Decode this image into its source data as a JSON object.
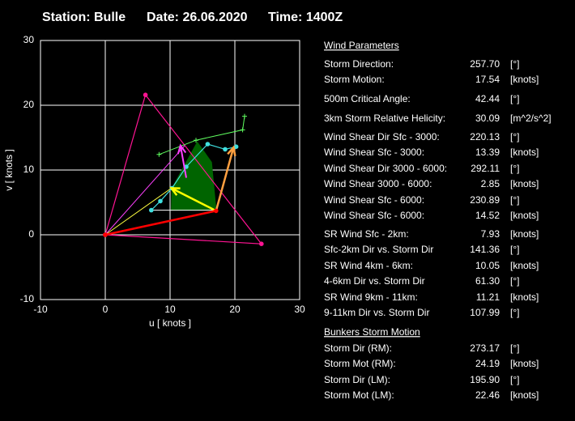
{
  "header": {
    "station": "Station: Bulle",
    "date": "Date: 26.06.2020",
    "time": "Time: 1400Z"
  },
  "chart_data": {
    "type": "hodograph",
    "xlabel": "u  [ knots ]",
    "ylabel": "v  [ knots ]",
    "xlim": [
      -10,
      30
    ],
    "ylim": [
      -10,
      30
    ],
    "xticks": [
      -10,
      0,
      10,
      20,
      30
    ],
    "yticks": [
      -10,
      0,
      10,
      20,
      30
    ],
    "grid": true,
    "series": [
      {
        "color": "#006400",
        "fill": true,
        "x": [
          10.2,
          10.3,
          14.2,
          16.4,
          17.1
        ],
        "values": [
          3.8,
          7.2,
          14.3,
          11.2,
          3.8
        ]
      },
      {
        "color": "#ff1493",
        "width": 1.2,
        "marker": "dot",
        "x": [
          0,
          6.2,
          24.1,
          0
        ],
        "values": [
          0,
          21.6,
          -1.4,
          0
        ]
      },
      {
        "color": "#ffffff",
        "width": 1,
        "x": [
          7.1,
          17.1
        ],
        "values": [
          3.8,
          3.8
        ]
      },
      {
        "color": "#ff40ff",
        "width": 1,
        "x": [
          0,
          12.3
        ],
        "values": [
          0,
          13.8
        ]
      },
      {
        "color": "#ffff40",
        "width": 1,
        "x": [
          0,
          10.2
        ],
        "values": [
          0,
          7.2
        ]
      },
      {
        "color": "#40e0e0",
        "width": 1.2,
        "marker": "dot",
        "x": [
          7.1,
          8.5,
          10.3,
          12.5,
          15.8,
          18.5,
          20.2
        ],
        "values": [
          3.8,
          5.2,
          7.2,
          10.5,
          14,
          13.2,
          13.6
        ]
      },
      {
        "color": "#60ff60",
        "width": 1,
        "marker": "plus",
        "x": [
          8.3,
          14,
          21.2,
          21.5
        ],
        "values": [
          12.4,
          14.6,
          16.2,
          18.3
        ]
      },
      {
        "color": "#ff40ff",
        "width": 2,
        "arrow": true,
        "x": [
          12.5,
          11.6
        ],
        "values": [
          8.8,
          13.8
        ]
      },
      {
        "color": "#ffff00",
        "width": 2.5,
        "arrow": true,
        "x": [
          17.1,
          10.2
        ],
        "values": [
          3.7,
          7.2
        ]
      },
      {
        "color": "#ffa040",
        "width": 2.5,
        "arrow": true,
        "x": [
          17.1,
          19.8
        ],
        "values": [
          3.7,
          13.5
        ]
      },
      {
        "color": "#ff0000",
        "width": 2.5,
        "marker": "dot",
        "x": [
          0,
          17.1
        ],
        "values": [
          0,
          3.7
        ]
      }
    ]
  },
  "panel": {
    "wind_title": "Wind Parameters",
    "bunkers_title": "Bunkers Storm Motion",
    "rows": [
      {
        "label": "Storm Direction:",
        "value": "257.70",
        "unit": "[°]",
        "color": "#ff2020"
      },
      {
        "label": "Storm Motion:",
        "value": "17.54",
        "unit": "[knots]",
        "color": "#ff2020"
      },
      {
        "label": "500m Critical Angle:",
        "value": "42.44",
        "unit": "[°]",
        "color": "#e080ff"
      },
      {
        "label": "3km Storm Relative Helicity:",
        "value": "30.09",
        "unit": "[m^2/s^2]",
        "color": "#40c040"
      },
      {
        "label": "Wind Shear Dir Sfc - 3000:",
        "value": "220.13",
        "unit": "[°]",
        "color": "#40e0e0"
      },
      {
        "label": "Wind Shear Sfc - 3000:",
        "value": "13.39",
        "unit": "[knots]",
        "color": "#40e0e0"
      },
      {
        "label": "Wind Shear Dir 3000 - 6000:",
        "value": "292.11",
        "unit": "[°]",
        "color": "#40e0e0"
      },
      {
        "label": "Wind Shear 3000 - 6000:",
        "value": "2.85",
        "unit": "[knots]",
        "color": "#40e0e0"
      },
      {
        "label": "Wind Shear Sfc - 6000:",
        "value": "230.89",
        "unit": "[°]",
        "color": "#40e0e0"
      },
      {
        "label": "Wind Shear Sfc - 6000:",
        "value": "14.52",
        "unit": "[knots]",
        "color": "#40e0e0"
      },
      {
        "label": "SR Wind Sfc - 2km:",
        "value": "7.93",
        "unit": "[knots]",
        "color": "#ffff00"
      },
      {
        "label": "Sfc-2km Dir vs. Storm Dir",
        "value": "141.36",
        "unit": "[°]",
        "color": "#ffff00"
      },
      {
        "label": "SR Wind 4km - 6km:",
        "value": "10.05",
        "unit": "[knots]",
        "color": "#ffa040"
      },
      {
        "label": "4-6km Dir vs. Storm Dir",
        "value": "61.30",
        "unit": "[°]",
        "color": "#ffa040"
      },
      {
        "label": "SR Wind 9km - 11km:",
        "value": "11.21",
        "unit": "[knots]",
        "color": "#ff40ff"
      },
      {
        "label": "9-11km Dir vs. Storm Dir",
        "value": "107.99",
        "unit": "[°]",
        "color": "#ff40ff"
      },
      {
        "label": "Storm Dir (RM):",
        "value": "273.17",
        "unit": "[°]",
        "color": "#ff1493"
      },
      {
        "label": "Storm Mot (RM):",
        "value": "24.19",
        "unit": "[knots]",
        "color": "#ff1493"
      },
      {
        "label": "Storm Dir (LM):",
        "value": "195.90",
        "unit": "[°]",
        "color": "#ff1493"
      },
      {
        "label": "Storm Mot (LM):",
        "value": "22.46",
        "unit": "[knots]",
        "color": "#ff1493"
      }
    ]
  }
}
